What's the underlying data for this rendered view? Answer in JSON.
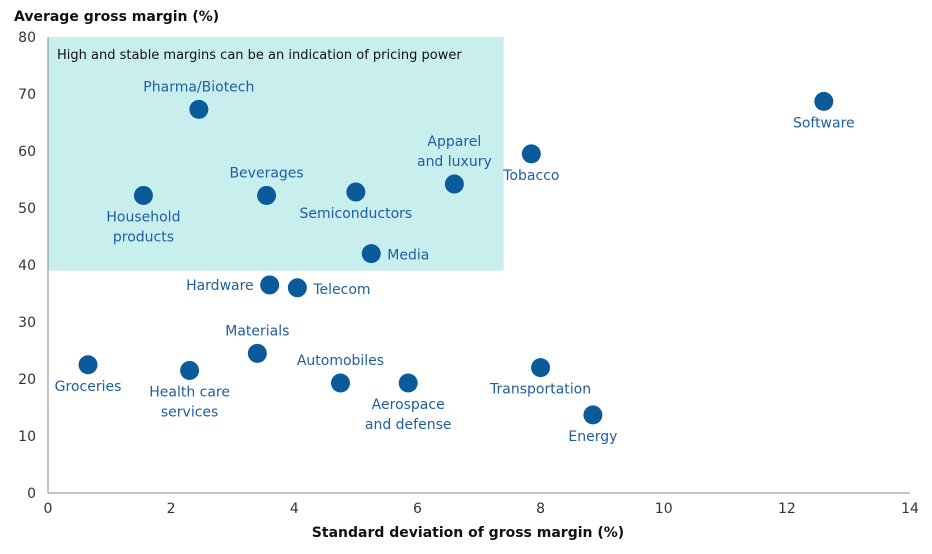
{
  "chart_data": {
    "type": "scatter",
    "title": "",
    "ylabel": "Average gross margin (%)",
    "xlabel": "Standard deviation of gross margin (%)",
    "xlim": [
      0,
      14
    ],
    "ylim": [
      0,
      80
    ],
    "xticks": [
      0,
      2,
      4,
      6,
      8,
      10,
      12,
      14
    ],
    "yticks": [
      0,
      10,
      20,
      30,
      40,
      50,
      60,
      70,
      80
    ],
    "grid": false,
    "colors": {
      "point": "#0b5a9a",
      "label": "#1f5fa0",
      "region": "#c9eeee"
    },
    "highlight_region": {
      "label": "High and stable margins can be an indication of pricing power",
      "x": [
        0,
        7.4
      ],
      "y": [
        39,
        80
      ]
    },
    "points": [
      {
        "name": "Groceries",
        "x": 0.65,
        "y": 22.5,
        "label_lines": [
          "Groceries"
        ],
        "label_pos": "below"
      },
      {
        "name": "Household products",
        "x": 1.55,
        "y": 52.2,
        "label_lines": [
          "Household",
          "products"
        ],
        "label_pos": "below"
      },
      {
        "name": "Health care services",
        "x": 2.3,
        "y": 21.5,
        "label_lines": [
          "Health care",
          "services"
        ],
        "label_pos": "below"
      },
      {
        "name": "Pharma/Biotech",
        "x": 2.45,
        "y": 67.3,
        "label_lines": [
          "Pharma/Biotech"
        ],
        "label_pos": "above"
      },
      {
        "name": "Materials",
        "x": 3.4,
        "y": 24.5,
        "label_lines": [
          "Materials"
        ],
        "label_pos": "above"
      },
      {
        "name": "Beverages",
        "x": 3.55,
        "y": 52.2,
        "label_lines": [
          "Beverages"
        ],
        "label_pos": "above"
      },
      {
        "name": "Hardware",
        "x": 3.6,
        "y": 36.5,
        "label_lines": [
          "Hardware"
        ],
        "label_pos": "left"
      },
      {
        "name": "Telecom",
        "x": 4.05,
        "y": 36.0,
        "label_lines": [
          "Telecom"
        ],
        "label_pos": "right"
      },
      {
        "name": "Automobiles",
        "x": 4.75,
        "y": 19.3,
        "label_lines": [
          "Automobiles"
        ],
        "label_pos": "above"
      },
      {
        "name": "Semiconductors",
        "x": 5.0,
        "y": 52.8,
        "label_lines": [
          "Semiconductors"
        ],
        "label_pos": "below"
      },
      {
        "name": "Media",
        "x": 5.25,
        "y": 42.0,
        "label_lines": [
          "Media"
        ],
        "label_pos": "right"
      },
      {
        "name": "Aerospace and defense",
        "x": 5.85,
        "y": 19.3,
        "label_lines": [
          "Aerospace",
          "and defense"
        ],
        "label_pos": "below"
      },
      {
        "name": "Apparel and luxury",
        "x": 6.6,
        "y": 54.2,
        "label_lines": [
          "Apparel",
          "and luxury"
        ],
        "label_pos": "above"
      },
      {
        "name": "Tobacco",
        "x": 7.85,
        "y": 59.5,
        "label_lines": [
          "Tobacco"
        ],
        "label_pos": "below"
      },
      {
        "name": "Transportation",
        "x": 8.0,
        "y": 22.0,
        "label_lines": [
          "Transportation"
        ],
        "label_pos": "below"
      },
      {
        "name": "Energy",
        "x": 8.85,
        "y": 13.7,
        "label_lines": [
          "Energy"
        ],
        "label_pos": "below"
      },
      {
        "name": "Software",
        "x": 12.6,
        "y": 68.7,
        "label_lines": [
          "Software"
        ],
        "label_pos": "below"
      }
    ]
  }
}
